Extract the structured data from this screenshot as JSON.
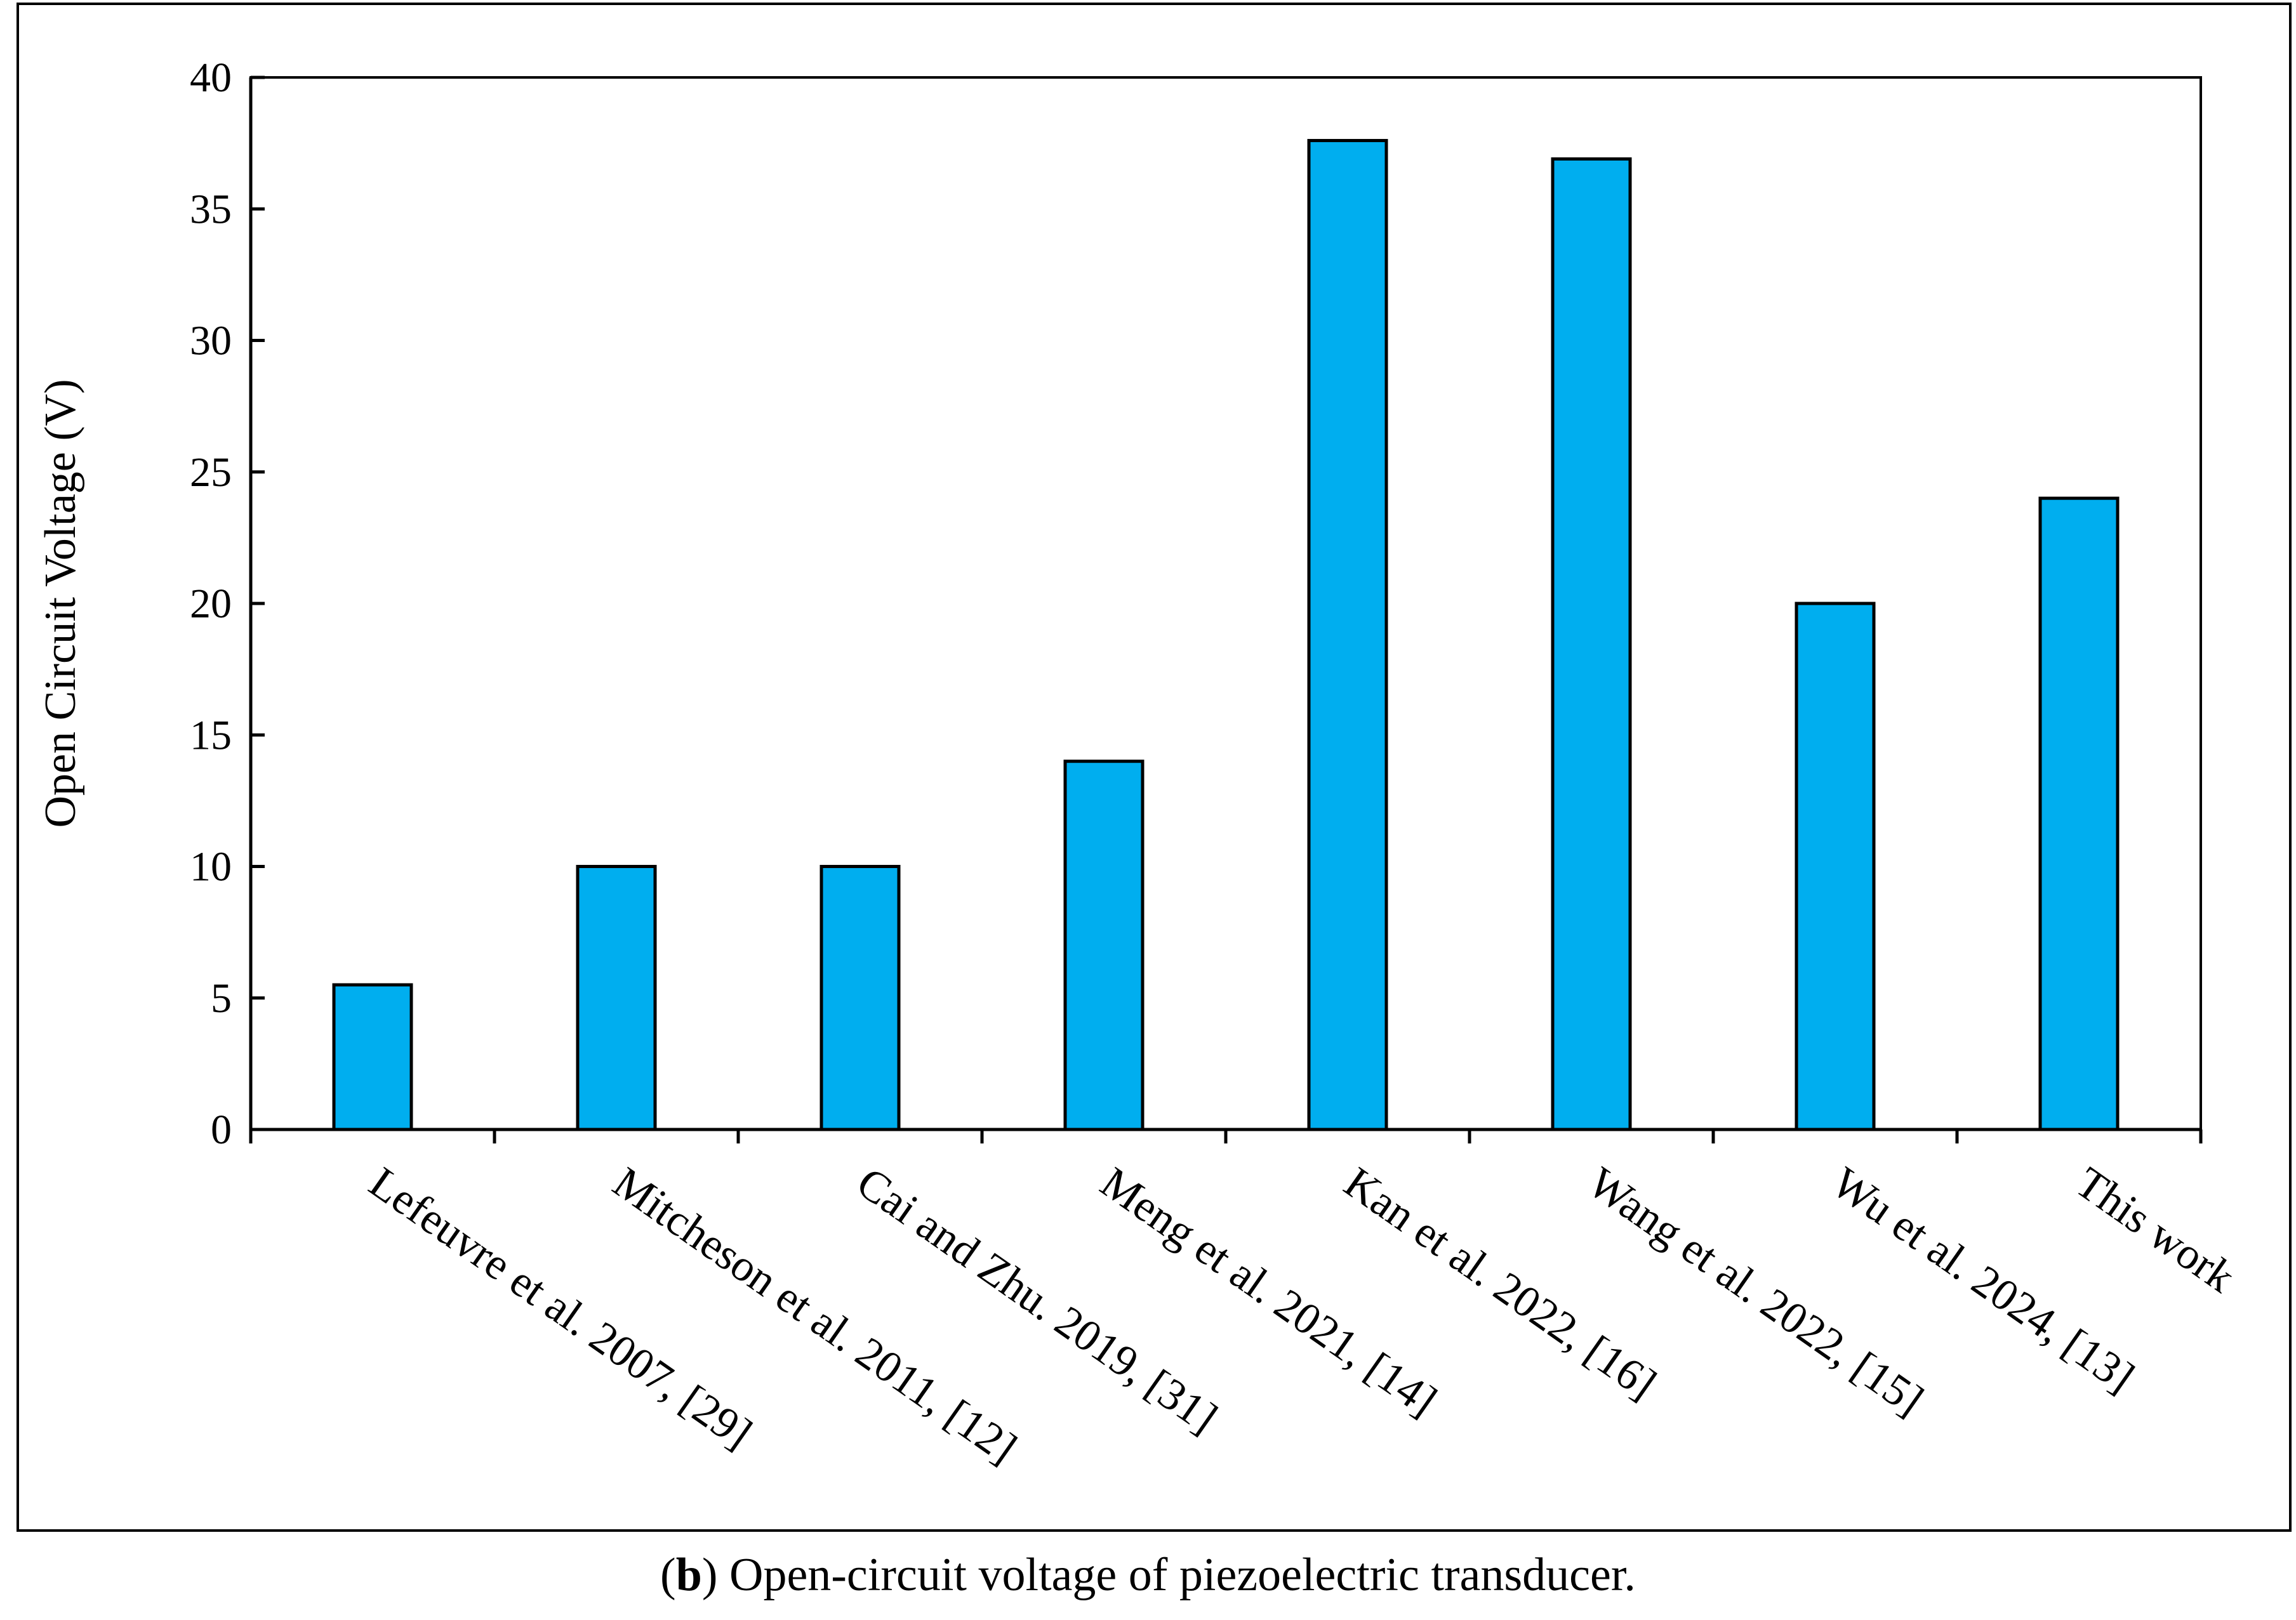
{
  "chart_data": {
    "type": "bar",
    "categories": [
      "Lefeuvre et al. 2007, [29]",
      "Mitcheson et al. 2011, [12]",
      "Cai and Zhu. 2019, [31]",
      "Meng et al. 2021, [14]",
      "Kan et al. 2022, [16]",
      "Wang et al. 2022, [15]",
      "Wu et al. 2024, [13]",
      "This work"
    ],
    "values": [
      5.5,
      10,
      10,
      14,
      37.6,
      36.9,
      20,
      24
    ],
    "ylabel": "Open Circuit  Voltage  (V)",
    "xlabel": "",
    "ylim": [
      0,
      40
    ],
    "yticks": [
      0,
      5,
      10,
      15,
      20,
      25,
      30,
      35,
      40
    ],
    "bar_color": "#00AEEF",
    "grid": false
  },
  "caption": {
    "open_paren": "(",
    "letter": "b",
    "text": ") Open-circuit voltage of piezoelectric transducer."
  }
}
